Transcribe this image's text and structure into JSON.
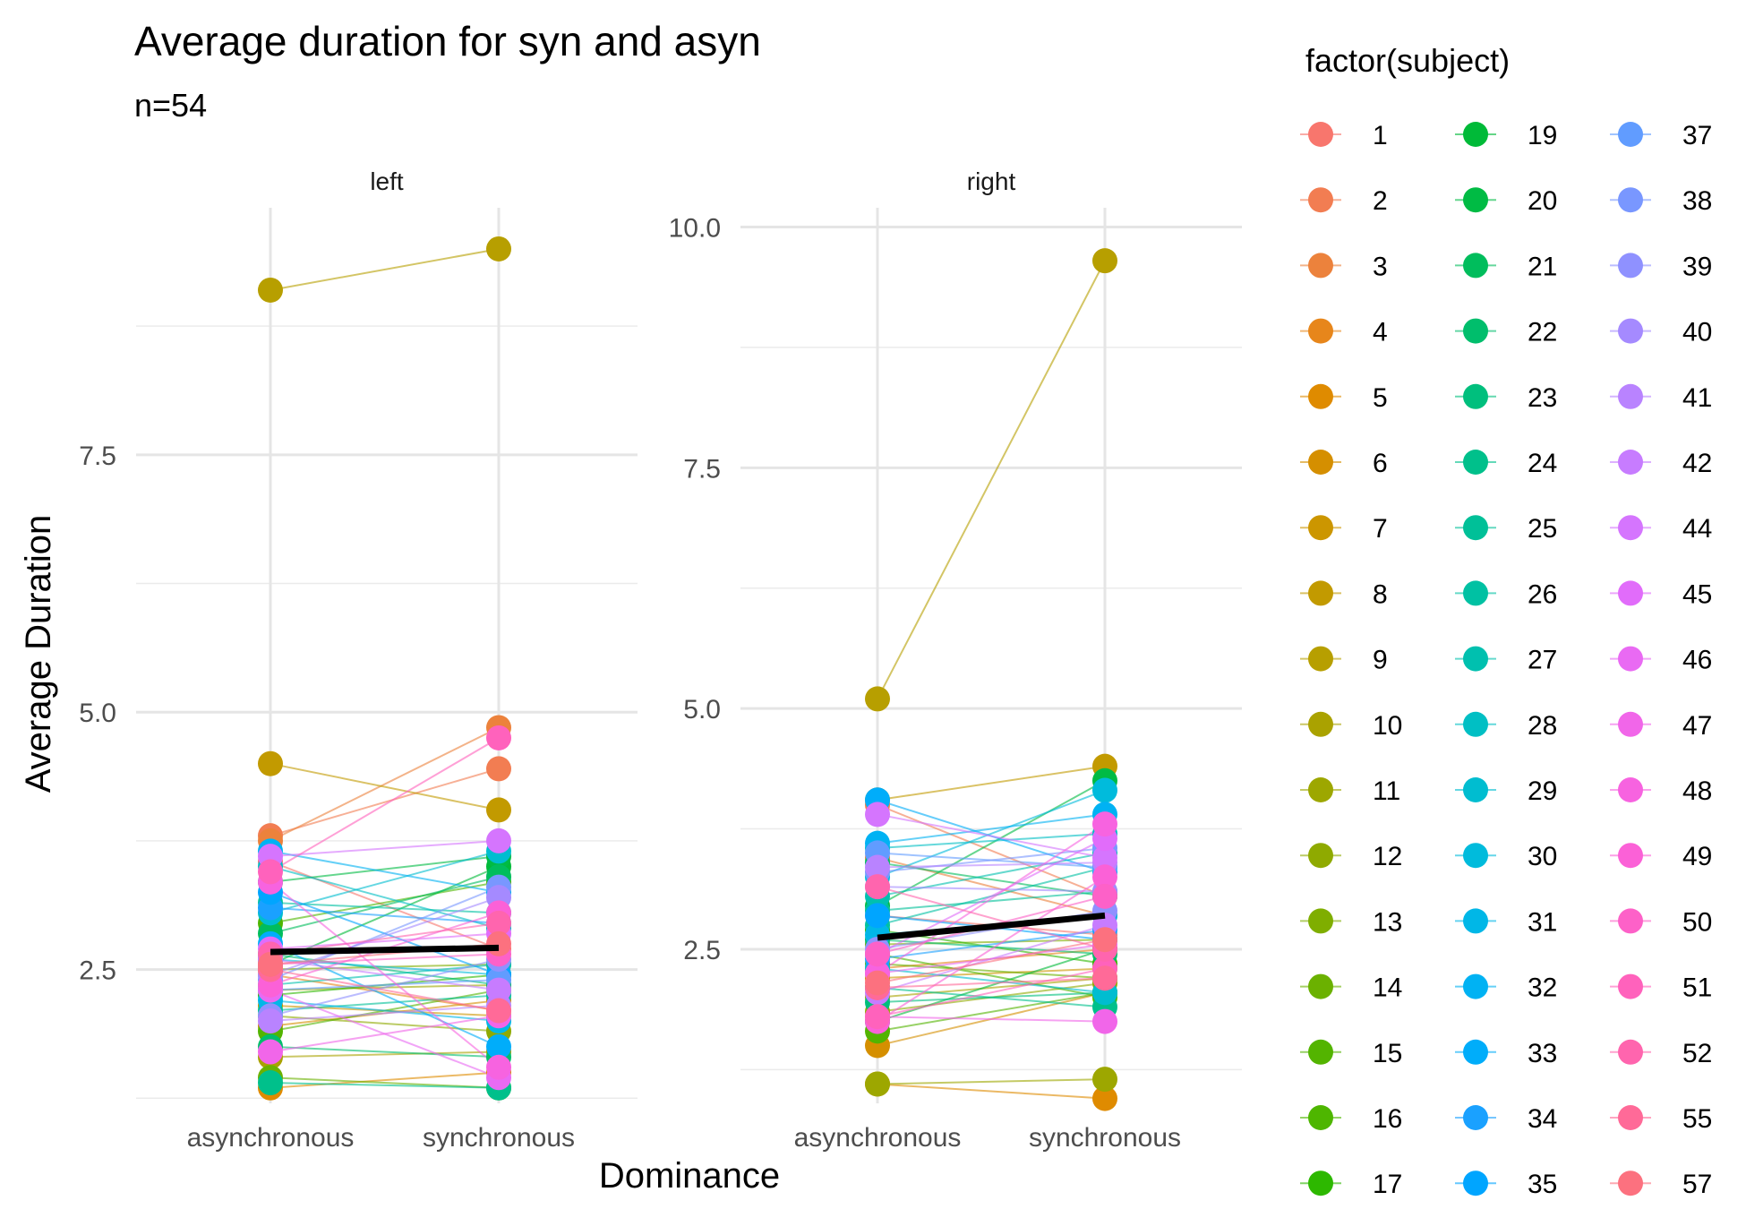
{
  "chart_data": {
    "type": "line",
    "title": "Average duration for syn and asyn",
    "subtitle": "n=54",
    "xlabel": "Dominance",
    "ylabel": "Average Duration",
    "categories": [
      "asynchronous",
      "synchronous"
    ],
    "panels": [
      {
        "label": "left",
        "ylim": [
          1.2,
          9.9
        ],
        "yticks": [
          2.5,
          5.0,
          7.5
        ],
        "ytick_labels": [
          "2.5",
          "5.0",
          "7.5"
        ],
        "mean": [
          2.67,
          2.71
        ]
      },
      {
        "label": "right",
        "ylim": [
          0.9,
          10.2
        ],
        "yticks": [
          2.5,
          5.0,
          7.5,
          10.0
        ],
        "ytick_labels": [
          "2.5",
          "5.0",
          "7.5",
          "10.0"
        ],
        "mean": [
          2.62,
          2.85
        ]
      }
    ],
    "legend_title": "factor(subject)",
    "legend_position": "right",
    "grid": true,
    "series": [
      {
        "name": "1",
        "color": "#F8766D",
        "left": [
          3.55,
          2.7
        ],
        "right": [
          2.85,
          2.65
        ]
      },
      {
        "name": "2",
        "color": "#F27D52",
        "left": [
          3.8,
          4.45
        ],
        "right": [
          4.0,
          3.05
        ]
      },
      {
        "name": "3",
        "color": "#EC823C",
        "left": [
          3.75,
          4.85
        ],
        "right": [
          3.45,
          2.85
        ]
      },
      {
        "name": "4",
        "color": "#E7861B",
        "left": [
          2.45,
          2.1
        ],
        "right": [
          2.3,
          2.5
        ]
      },
      {
        "name": "5",
        "color": "#DF8B00",
        "left": [
          1.35,
          1.5
        ],
        "right": [
          1.1,
          0.95
        ]
      },
      {
        "name": "6",
        "color": "#D58F00",
        "left": [
          1.95,
          2.2
        ],
        "right": [
          1.5,
          2.05
        ]
      },
      {
        "name": "7",
        "color": "#CC9600",
        "left": [
          2.15,
          2.05
        ],
        "right": [
          2.2,
          2.3
        ]
      },
      {
        "name": "8",
        "color": "#C29A00",
        "left": [
          4.5,
          4.05
        ],
        "right": [
          4.05,
          4.4
        ]
      },
      {
        "name": "9",
        "color": "#B79F00",
        "left": [
          9.1,
          9.5
        ],
        "right": [
          5.1,
          9.65
        ]
      },
      {
        "name": "10",
        "color": "#AAA200",
        "left": [
          1.65,
          1.7
        ],
        "right": [
          2.0,
          2.2
        ]
      },
      {
        "name": "11",
        "color": "#9DA700",
        "left": [
          2.3,
          2.35
        ],
        "right": [
          1.1,
          1.15
        ]
      },
      {
        "name": "12",
        "color": "#8FAA00",
        "left": [
          2.05,
          1.9
        ],
        "right": [
          1.85,
          2.15
        ]
      },
      {
        "name": "13",
        "color": "#7FAE00",
        "left": [
          2.5,
          2.55
        ],
        "right": [
          2.55,
          2.6
        ]
      },
      {
        "name": "14",
        "color": "#6BB100",
        "left": [
          1.45,
          1.35
        ],
        "right": [
          2.35,
          2.2
        ]
      },
      {
        "name": "15",
        "color": "#53B400",
        "left": [
          1.9,
          2.3
        ],
        "right": [
          1.65,
          2.05
        ]
      },
      {
        "name": "16",
        "color": "#4EB600",
        "left": [
          2.95,
          3.35
        ],
        "right": [
          2.45,
          2.0
        ]
      },
      {
        "name": "17",
        "color": "#2DB800",
        "left": [
          2.25,
          2.45
        ],
        "right": [
          2.7,
          2.35
        ]
      },
      {
        "name": "19",
        "color": "#00BA38",
        "left": [
          2.55,
          3.5
        ],
        "right": [
          1.75,
          2.5
        ]
      },
      {
        "name": "20",
        "color": "#00BB44",
        "left": [
          3.35,
          3.6
        ],
        "right": [
          2.95,
          4.25
        ]
      },
      {
        "name": "21",
        "color": "#00BD5C",
        "left": [
          2.85,
          3.4
        ],
        "right": [
          3.4,
          3.05
        ]
      },
      {
        "name": "22",
        "color": "#00BE6C",
        "left": [
          1.75,
          1.65
        ],
        "right": [
          2.6,
          2.45
        ]
      },
      {
        "name": "23",
        "color": "#00BF7D",
        "left": [
          2.65,
          2.35
        ],
        "right": [
          1.95,
          2.05
        ]
      },
      {
        "name": "24",
        "color": "#00C08B",
        "left": [
          1.4,
          1.35
        ],
        "right": [
          2.1,
          1.9
        ]
      },
      {
        "name": "25",
        "color": "#00C098",
        "left": [
          2.1,
          2.25
        ],
        "right": [
          2.9,
          3.1
        ]
      },
      {
        "name": "26",
        "color": "#00C1A3",
        "left": [
          3.15,
          3.05
        ],
        "right": [
          2.75,
          3.35
        ]
      },
      {
        "name": "27",
        "color": "#00C0AF",
        "left": [
          2.35,
          2.55
        ],
        "right": [
          3.05,
          3.5
        ]
      },
      {
        "name": "28",
        "color": "#00BFC4",
        "left": [
          3.5,
          2.9
        ],
        "right": [
          3.55,
          3.7
        ]
      },
      {
        "name": "29",
        "color": "#00BDD0",
        "left": [
          3.05,
          3.65
        ],
        "right": [
          2.3,
          2.05
        ]
      },
      {
        "name": "30",
        "color": "#00BBDC",
        "left": [
          2.6,
          2.45
        ],
        "right": [
          3.25,
          4.15
        ]
      },
      {
        "name": "31",
        "color": "#00B7E7",
        "left": [
          2.2,
          2.0
        ],
        "right": [
          2.65,
          2.85
        ]
      },
      {
        "name": "32",
        "color": "#00B2F3",
        "left": [
          3.65,
          3.25
        ],
        "right": [
          3.6,
          3.9
        ]
      },
      {
        "name": "33",
        "color": "#00ADFA",
        "left": [
          2.75,
          1.75
        ],
        "right": [
          4.05,
          3.3
        ]
      },
      {
        "name": "34",
        "color": "#1AA1FF",
        "left": [
          3.1,
          2.95
        ],
        "right": [
          2.4,
          2.7
        ]
      },
      {
        "name": "35",
        "color": "#00A5FF",
        "left": [
          3.25,
          2.45
        ],
        "right": [
          2.85,
          2.6
        ]
      },
      {
        "name": "37",
        "color": "#619CFF",
        "left": [
          2.3,
          2.4
        ],
        "right": [
          3.5,
          3.35
        ]
      },
      {
        "name": "38",
        "color": "#7997FF",
        "left": [
          2.4,
          3.3
        ],
        "right": [
          3.3,
          3.55
        ]
      },
      {
        "name": "39",
        "color": "#8F91FF",
        "left": [
          2.05,
          2.6
        ],
        "right": [
          2.5,
          2.9
        ]
      },
      {
        "name": "40",
        "color": "#A58AFF",
        "left": [
          2.45,
          3.2
        ],
        "right": [
          3.15,
          3.1
        ]
      },
      {
        "name": "41",
        "color": "#B983FF",
        "left": [
          2.0,
          2.15
        ],
        "right": [
          3.35,
          3.4
        ]
      },
      {
        "name": "42",
        "color": "#C77CFF",
        "left": [
          2.6,
          2.3
        ],
        "right": [
          2.05,
          2.75
        ]
      },
      {
        "name": "44",
        "color": "#D575FE",
        "left": [
          3.6,
          3.75
        ],
        "right": [
          3.9,
          3.45
        ]
      },
      {
        "name": "45",
        "color": "#E16CFA",
        "left": [
          2.7,
          2.85
        ],
        "right": [
          2.45,
          3.65
        ]
      },
      {
        "name": "46",
        "color": "#E96AF3",
        "left": [
          2.3,
          1.45
        ],
        "right": [
          2.25,
          2.55
        ]
      },
      {
        "name": "47",
        "color": "#F166E9",
        "left": [
          1.7,
          2.05
        ],
        "right": [
          1.8,
          1.75
        ]
      },
      {
        "name": "48",
        "color": "#F763E0",
        "left": [
          3.35,
          1.55
        ],
        "right": [
          2.25,
          3.8
        ]
      },
      {
        "name": "49",
        "color": "#FB61D7",
        "left": [
          2.35,
          3.05
        ],
        "right": [
          1.75,
          3.25
        ]
      },
      {
        "name": "50",
        "color": "#FD61C8",
        "left": [
          2.55,
          2.65
        ],
        "right": [
          2.45,
          3.05
        ]
      },
      {
        "name": "51",
        "color": "#FF62BC",
        "left": [
          3.45,
          4.75
        ],
        "right": [
          1.8,
          2.3
        ]
      },
      {
        "name": "52",
        "color": "#FF65AE",
        "left": [
          2.65,
          2.95
        ],
        "right": [
          3.15,
          2.5
        ]
      },
      {
        "name": "55",
        "color": "#FF6A98",
        "left": [
          2.5,
          2.1
        ],
        "right": [
          2.1,
          2.2
        ]
      },
      {
        "name": "57",
        "color": "#FC717F",
        "left": [
          2.55,
          2.75
        ],
        "right": [
          2.15,
          2.6
        ]
      }
    ]
  }
}
